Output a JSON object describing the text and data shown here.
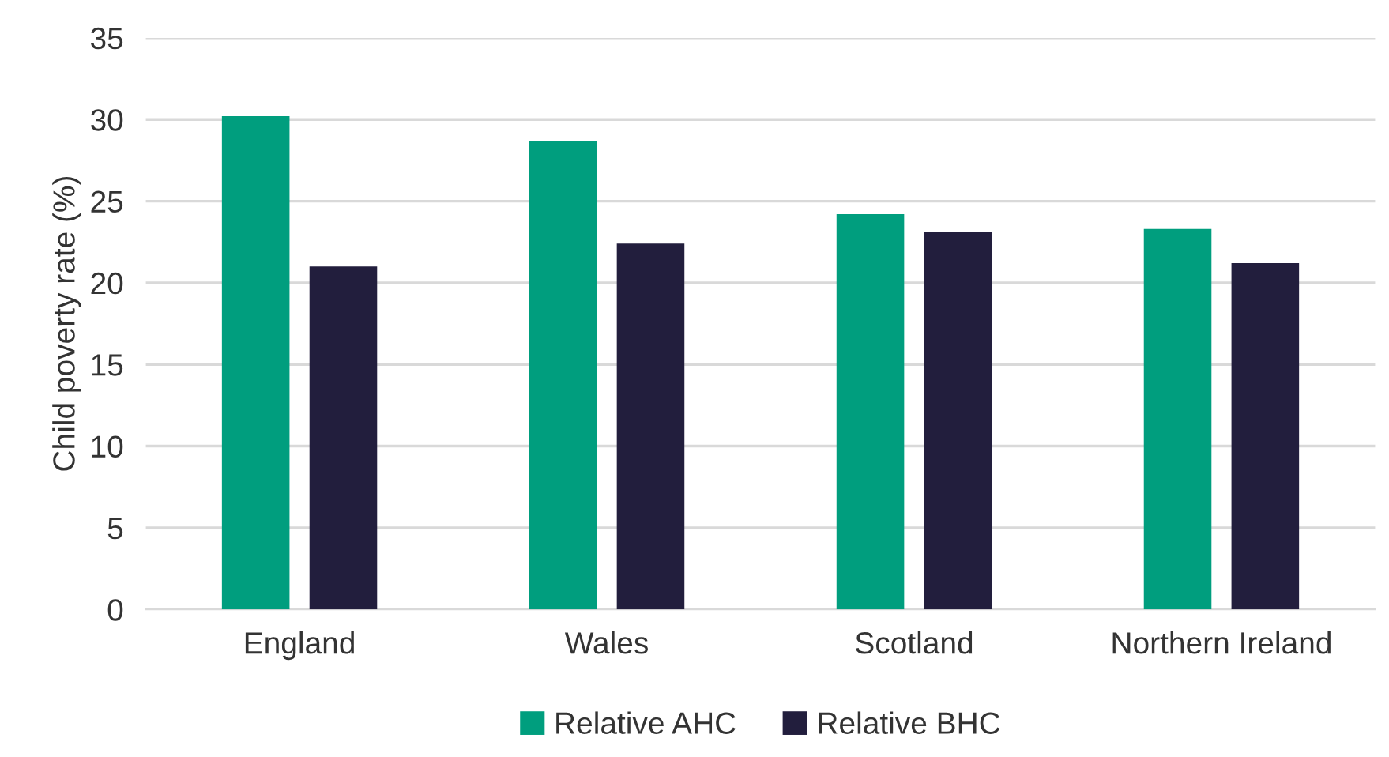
{
  "chart_data": {
    "type": "bar",
    "ylabel": "Child poverty rate (%)",
    "categories": [
      "England",
      "Wales",
      "Scotland",
      "Northern Ireland"
    ],
    "series": [
      {
        "name": "Relative AHC",
        "color": "#009e7e",
        "values": [
          30.2,
          28.7,
          24.2,
          23.3
        ]
      },
      {
        "name": "Relative BHC",
        "color": "#221e3d",
        "values": [
          21.0,
          22.4,
          23.1,
          21.2
        ]
      }
    ],
    "ylim": [
      0,
      35
    ],
    "yticks": [
      0,
      5,
      10,
      15,
      20,
      25,
      30,
      35
    ],
    "grid": "y",
    "legend": "bottom"
  }
}
